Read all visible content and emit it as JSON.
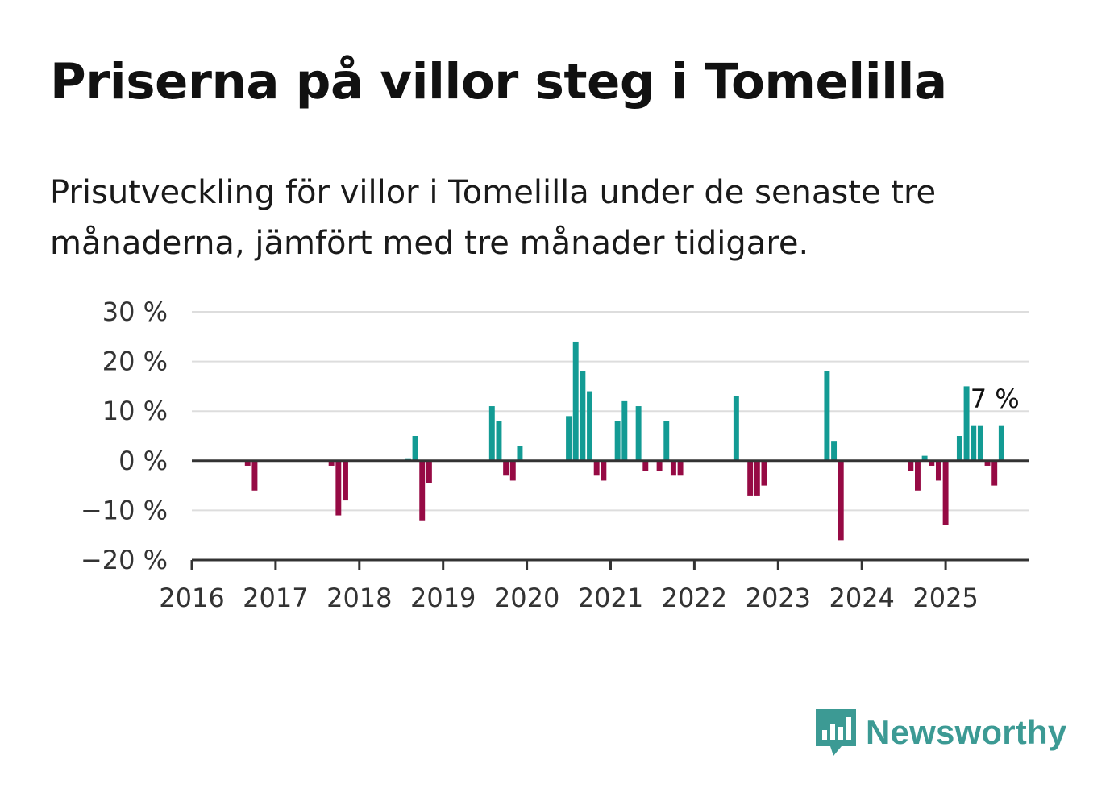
{
  "title": "Priserna på villor steg i Tomelilla",
  "subtitle": "Prisutveckling för villor i Tomelilla under de senaste tre månaderna, jämfört med tre månader tidigare.",
  "brand": {
    "name": "Newsworthy",
    "color": "#3c9a94",
    "icon": "bar-chart-speech-bubble-icon"
  },
  "colors": {
    "positive": "#139b94",
    "negative": "#960a44",
    "grid": "#dddddd",
    "axis": "#333333"
  },
  "chart_data": {
    "type": "bar",
    "x_axis": {
      "type": "date",
      "ticks": [
        "2016",
        "2017",
        "2018",
        "2019",
        "2020",
        "2021",
        "2022",
        "2023",
        "2024",
        "2025"
      ],
      "range": [
        "2016-01",
        "2026-01"
      ]
    },
    "y_axis": {
      "range": [
        -20,
        30
      ],
      "ticks": [
        -20,
        -10,
        0,
        10,
        20,
        30
      ],
      "tick_labels": [
        "−20 %",
        "−10 %",
        "0 %",
        "10 %",
        "20 %",
        "30 %"
      ]
    },
    "grid": true,
    "annotation": {
      "text": "7 %",
      "date": "2025-08"
    },
    "points": [
      {
        "date": "2016-09",
        "value": -1
      },
      {
        "date": "2016-10",
        "value": -6
      },
      {
        "date": "2017-09",
        "value": -1
      },
      {
        "date": "2017-10",
        "value": -11
      },
      {
        "date": "2017-11",
        "value": -8
      },
      {
        "date": "2018-08",
        "value": 0.5
      },
      {
        "date": "2018-09",
        "value": 5
      },
      {
        "date": "2018-10",
        "value": -12
      },
      {
        "date": "2018-11",
        "value": -4.5
      },
      {
        "date": "2019-08",
        "value": 11
      },
      {
        "date": "2019-09",
        "value": 8
      },
      {
        "date": "2019-10",
        "value": -3
      },
      {
        "date": "2019-11",
        "value": -4
      },
      {
        "date": "2019-12",
        "value": 3
      },
      {
        "date": "2020-07",
        "value": 9
      },
      {
        "date": "2020-08",
        "value": 24
      },
      {
        "date": "2020-09",
        "value": 18
      },
      {
        "date": "2020-10",
        "value": 14
      },
      {
        "date": "2020-11",
        "value": -3
      },
      {
        "date": "2020-12",
        "value": -4
      },
      {
        "date": "2021-02",
        "value": 8
      },
      {
        "date": "2021-03",
        "value": 12
      },
      {
        "date": "2021-05",
        "value": 11
      },
      {
        "date": "2021-06",
        "value": -2
      },
      {
        "date": "2021-08",
        "value": -2
      },
      {
        "date": "2021-09",
        "value": 8
      },
      {
        "date": "2021-10",
        "value": -3
      },
      {
        "date": "2021-11",
        "value": -3
      },
      {
        "date": "2022-07",
        "value": 13
      },
      {
        "date": "2022-09",
        "value": -7
      },
      {
        "date": "2022-10",
        "value": -7
      },
      {
        "date": "2022-11",
        "value": -5
      },
      {
        "date": "2023-08",
        "value": 18
      },
      {
        "date": "2023-09",
        "value": 4
      },
      {
        "date": "2023-10",
        "value": -16
      },
      {
        "date": "2024-08",
        "value": -2
      },
      {
        "date": "2024-09",
        "value": -6
      },
      {
        "date": "2024-10",
        "value": 1
      },
      {
        "date": "2024-11",
        "value": -1
      },
      {
        "date": "2024-12",
        "value": -4
      },
      {
        "date": "2025-01",
        "value": -13
      },
      {
        "date": "2025-03",
        "value": 5
      },
      {
        "date": "2025-04",
        "value": 15
      },
      {
        "date": "2025-05",
        "value": 7
      },
      {
        "date": "2025-06",
        "value": 7
      },
      {
        "date": "2025-07",
        "value": -1
      },
      {
        "date": "2025-08",
        "value": -5
      },
      {
        "date": "2025-09",
        "value": 7
      }
    ]
  }
}
